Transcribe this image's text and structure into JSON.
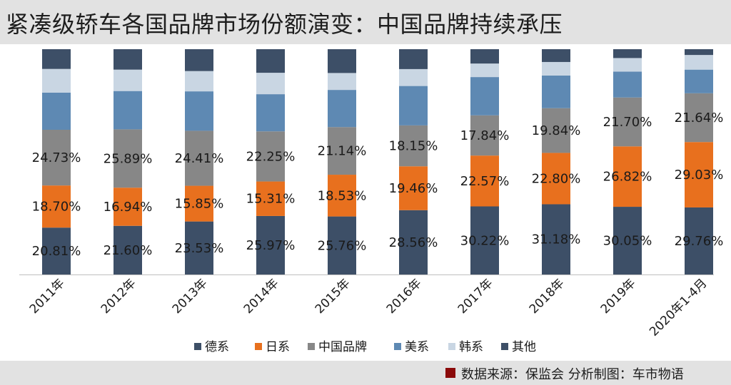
{
  "title": "紧凑级轿车各国品牌市场份额演变：中国品牌持续承压",
  "footer": {
    "source": "数据来源：保监会  分析制图：车市物语",
    "marker_color": "#8b0a0a"
  },
  "chart_data": {
    "type": "bar",
    "stacked": true,
    "percent_stacked": true,
    "title": "紧凑级轿车各国品牌市场份额演变：中国品牌持续承压",
    "xlabel": "",
    "ylabel": "",
    "ylim": [
      0,
      100
    ],
    "grid": false,
    "legend_position": "bottom",
    "categories": [
      "2011年",
      "2012年",
      "2013年",
      "2014年",
      "2015年",
      "2016年",
      "2017年",
      "2018年",
      "2019年",
      "2020年1-4月"
    ],
    "series": [
      {
        "name": "德系",
        "color": "#3d4f67",
        "labeled": true,
        "values": [
          20.81,
          21.6,
          23.53,
          25.97,
          25.76,
          28.56,
          30.22,
          31.18,
          30.05,
          29.76
        ],
        "labels": [
          "20.81%",
          "21.60%",
          "23.53%",
          "25.97%",
          "25.76%",
          "28.56%",
          "30.22%",
          "31.18%",
          "30.05%",
          "29.76%"
        ]
      },
      {
        "name": "日系",
        "color": "#e8701e",
        "labeled": true,
        "values": [
          18.7,
          16.94,
          15.85,
          15.31,
          18.53,
          19.46,
          22.57,
          22.8,
          26.82,
          29.03
        ],
        "labels": [
          "18.70%",
          "16.94%",
          "15.85%",
          "15.31%",
          "18.53%",
          "19.46%",
          "22.57%",
          "22.80%",
          "26.82%",
          "29.03%"
        ]
      },
      {
        "name": "中国品牌",
        "color": "#878787",
        "labeled": true,
        "values": [
          24.73,
          25.89,
          24.41,
          22.25,
          21.14,
          18.15,
          17.84,
          19.84,
          21.7,
          21.64
        ],
        "labels": [
          "24.73%",
          "25.89%",
          "24.41%",
          "22.25%",
          "21.14%",
          "18.15%",
          "17.84%",
          "19.84%",
          "21.70%",
          "21.64%"
        ]
      },
      {
        "name": "美系",
        "color": "#5e89b3",
        "labeled": false,
        "values": [
          16.5,
          17.0,
          17.5,
          16.5,
          16.5,
          17.5,
          17.0,
          14.5,
          11.5,
          10.5
        ]
      },
      {
        "name": "韩系",
        "color": "#c9d6e3",
        "labeled": false,
        "values": [
          10.5,
          9.5,
          9.0,
          9.5,
          7.5,
          7.5,
          6.0,
          6.0,
          6.0,
          6.5
        ]
      },
      {
        "name": "其他",
        "color": "#3d4f67",
        "labeled": false,
        "values": [
          8.76,
          9.07,
          9.71,
          10.47,
          10.57,
          8.83,
          6.37,
          5.68,
          3.93,
          2.57
        ]
      }
    ]
  }
}
